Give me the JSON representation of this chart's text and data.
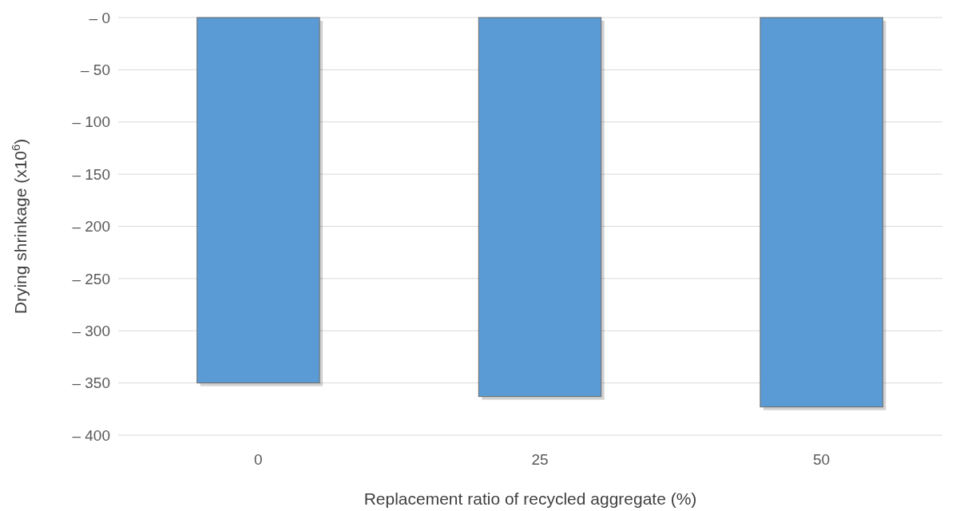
{
  "chart_data": {
    "type": "bar",
    "xlabel": "Replacement ratio of recycled aggregate (%)",
    "ylabel": "Drying shrinkage (x10$^{6}$)",
    "categories": [
      "0",
      "25",
      "50"
    ],
    "values": [
      -350,
      -363,
      -373
    ],
    "color": "#5b9bd5",
    "ylim": [
      -400,
      0
    ],
    "yticks": [
      {
        "value": 0,
        "label": "– 0"
      },
      {
        "value": -50,
        "label": "– 50"
      },
      {
        "value": -100,
        "label": "– 100"
      },
      {
        "value": -150,
        "label": "– 150"
      },
      {
        "value": -200,
        "label": "– 200"
      },
      {
        "value": -250,
        "label": "– 250"
      },
      {
        "value": -300,
        "label": "– 300"
      },
      {
        "value": -350,
        "label": "– 350"
      },
      {
        "value": -400,
        "label": "– 400"
      }
    ],
    "grid": "y"
  }
}
